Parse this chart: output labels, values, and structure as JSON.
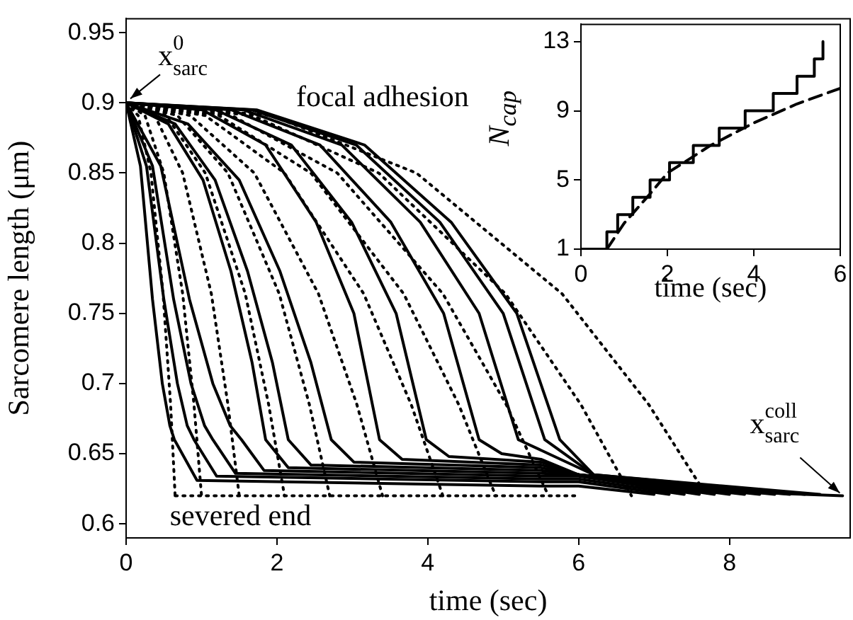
{
  "chart_data": [
    {
      "type": "line",
      "xlabel": "time (sec)",
      "ylabel": "Sarcomere length (μm)",
      "xlim": [
        0,
        9.6
      ],
      "ylim": [
        0.59,
        0.96
      ],
      "xticks": [
        0,
        2,
        4,
        6,
        8
      ],
      "yticks": [
        0.6,
        0.65,
        0.7,
        0.75,
        0.8,
        0.85,
        0.9,
        0.95
      ],
      "marker": "none",
      "annotations": [
        {
          "text": "x$^{0}$$_{sarc}$",
          "x": 0,
          "y": 0.9
        },
        "focal adhesion",
        "severed end",
        {
          "text": "x$^{coll}$$_{sarc}$",
          "x": 9.5,
          "y": 0.62
        }
      ],
      "series": [
        {
          "color": "#000000",
          "line_style": "solid",
          "x": [
            0,
            0.19,
            0.35,
            0.48,
            0.58,
            0.64,
            0.94,
            5.5,
            6,
            7
          ],
          "values": [
            0.9,
            0.855,
            0.76,
            0.7,
            0.67,
            0.66,
            0.631,
            0.627,
            0.627,
            0.621
          ]
        },
        {
          "color": "#000000",
          "line_style": "solid",
          "x": [
            0,
            0.27,
            0.5,
            0.68,
            0.81,
            0.9,
            1.2,
            5.5,
            6,
            7.2
          ],
          "values": [
            0.9,
            0.855,
            0.76,
            0.7,
            0.67,
            0.66,
            0.634,
            0.63,
            0.63,
            0.621
          ]
        },
        {
          "color": "#000000",
          "line_style": "solid",
          "x": [
            0,
            0.35,
            0.63,
            0.86,
            1.04,
            1.15,
            1.45,
            5.5,
            6,
            7.4
          ],
          "values": [
            0.9,
            0.855,
            0.76,
            0.7,
            0.67,
            0.66,
            0.636,
            0.632,
            0.632,
            0.621
          ]
        },
        {
          "color": "#000000",
          "line_style": "solid",
          "x": [
            0,
            0.46,
            0.84,
            1.15,
            1.38,
            1.53,
            1.83,
            5.5,
            6,
            7.6
          ],
          "values": [
            0.9,
            0.855,
            0.76,
            0.7,
            0.67,
            0.66,
            0.638,
            0.634,
            0.634,
            0.621
          ]
        },
        {
          "color": "#000000",
          "line_style": "solid",
          "x": [
            0,
            0.56,
            1.02,
            1.39,
            1.67,
            1.85,
            2.15,
            5.5,
            6,
            7.8
          ],
          "values": [
            0.9,
            0.885,
            0.845,
            0.78,
            0.715,
            0.66,
            0.64,
            0.636,
            0.635,
            0.621
          ]
        },
        {
          "color": "#000000",
          "line_style": "solid",
          "x": [
            0,
            0.65,
            1.18,
            1.61,
            1.94,
            2.15,
            2.45,
            5.5,
            6,
            8
          ],
          "values": [
            0.9,
            0.885,
            0.845,
            0.78,
            0.715,
            0.66,
            0.642,
            0.638,
            0.635,
            0.621
          ]
        },
        {
          "color": "#000000",
          "line_style": "solid",
          "x": [
            0,
            0.82,
            1.5,
            2.04,
            2.45,
            2.72,
            3.02,
            5.5,
            6,
            8.2
          ],
          "values": [
            0.9,
            0.885,
            0.845,
            0.78,
            0.715,
            0.66,
            0.644,
            0.64,
            0.635,
            0.621
          ]
        },
        {
          "color": "#000000",
          "line_style": "solid",
          "x": [
            0,
            1.01,
            1.85,
            2.52,
            3.02,
            3.36,
            3.66,
            5.5,
            6,
            8.4
          ],
          "values": [
            0.9,
            0.895,
            0.87,
            0.815,
            0.75,
            0.66,
            0.646,
            0.642,
            0.635,
            0.621
          ]
        },
        {
          "color": "#000000",
          "line_style": "solid",
          "x": [
            0,
            1.19,
            2.19,
            2.99,
            3.58,
            3.98,
            4.28,
            5.5,
            6,
            8.6
          ],
          "values": [
            0.9,
            0.895,
            0.87,
            0.815,
            0.75,
            0.66,
            0.648,
            0.644,
            0.635,
            0.621
          ]
        },
        {
          "color": "#000000",
          "line_style": "solid",
          "x": [
            0,
            1.4,
            2.57,
            3.51,
            4.21,
            4.68,
            4.98,
            5.5,
            6,
            8.8
          ],
          "values": [
            0.9,
            0.895,
            0.87,
            0.815,
            0.75,
            0.66,
            0.65,
            0.646,
            0.635,
            0.621
          ]
        },
        {
          "color": "#000000",
          "line_style": "solid",
          "x": [
            0,
            1.56,
            2.86,
            3.9,
            4.68,
            5.2,
            6.2,
            9
          ],
          "values": [
            0.9,
            0.895,
            0.87,
            0.815,
            0.75,
            0.66,
            0.635,
            0.621
          ]
        },
        {
          "color": "#000000",
          "line_style": "solid",
          "x": [
            0,
            1.67,
            3.05,
            4.16,
            5,
            5.55,
            6.2,
            9.2
          ],
          "values": [
            0.9,
            0.895,
            0.87,
            0.815,
            0.75,
            0.66,
            0.635,
            0.621
          ]
        },
        {
          "color": "#000000",
          "line_style": "solid",
          "x": [
            0,
            1.73,
            3.16,
            4.31,
            5.18,
            5.75,
            6.2,
            7,
            9.5
          ],
          "values": [
            0.9,
            0.895,
            0.87,
            0.815,
            0.75,
            0.66,
            0.635,
            0.625,
            0.62
          ]
        },
        {
          "color": "#000000",
          "line_style": "dotted",
          "x": [
            0,
            0.16,
            0.33,
            0.49,
            0.59,
            0.65
          ],
          "values": [
            0.9,
            0.891,
            0.85,
            0.764,
            0.685,
            0.62
          ]
        },
        {
          "color": "#000000",
          "line_style": "dotted",
          "x": [
            0,
            0.25,
            0.5,
            0.75,
            0.9,
            1
          ],
          "values": [
            0.9,
            0.891,
            0.85,
            0.764,
            0.685,
            0.62
          ]
        },
        {
          "color": "#000000",
          "line_style": "dotted",
          "x": [
            0,
            0.38,
            0.75,
            1.13,
            1.35,
            1.5
          ],
          "values": [
            0.9,
            0.891,
            0.85,
            0.764,
            0.685,
            0.62
          ]
        },
        {
          "color": "#000000",
          "line_style": "dotted",
          "x": [
            0,
            0.53,
            1.05,
            1.58,
            1.89,
            2.1
          ],
          "values": [
            0.9,
            0.891,
            0.85,
            0.764,
            0.685,
            0.62
          ]
        },
        {
          "color": "#000000",
          "line_style": "dotted",
          "x": [
            0,
            0.68,
            1.35,
            2.03,
            2.43,
            2.7
          ],
          "values": [
            0.9,
            0.891,
            0.85,
            0.764,
            0.685,
            0.62
          ]
        },
        {
          "color": "#000000",
          "line_style": "dotted",
          "x": [
            0,
            0.85,
            1.7,
            2.55,
            3.06,
            3.4
          ],
          "values": [
            0.9,
            0.891,
            0.85,
            0.764,
            0.685,
            0.62
          ]
        },
        {
          "color": "#000000",
          "line_style": "dotted",
          "x": [
            0,
            1.05,
            2.1,
            3.15,
            3.78,
            4.2
          ],
          "values": [
            0.9,
            0.891,
            0.85,
            0.764,
            0.685,
            0.62
          ]
        },
        {
          "color": "#000000",
          "line_style": "dotted",
          "x": [
            0,
            1.23,
            2.45,
            3.68,
            4.41,
            4.9
          ],
          "values": [
            0.9,
            0.891,
            0.85,
            0.764,
            0.685,
            0.62
          ]
        },
        {
          "color": "#000000",
          "line_style": "dotted",
          "x": [
            0,
            1.4,
            2.8,
            4.2,
            5.04,
            5.6
          ],
          "values": [
            0.9,
            0.891,
            0.85,
            0.764,
            0.685,
            0.62
          ]
        },
        {
          "color": "#000000",
          "line_style": "dotted",
          "x": [
            0,
            1.68,
            3.35,
            5.03,
            6.03,
            6.7
          ],
          "values": [
            0.9,
            0.891,
            0.85,
            0.764,
            0.685,
            0.62
          ]
        },
        {
          "color": "#000000",
          "line_style": "dotted",
          "x": [
            0,
            1.93,
            3.85,
            5.78,
            6.93,
            7.7
          ],
          "values": [
            0.9,
            0.891,
            0.85,
            0.764,
            0.685,
            0.62
          ]
        },
        {
          "color": "#000000",
          "line_style": "dotted",
          "x": [
            0.65,
            6
          ],
          "values": [
            0.62,
            0.62
          ]
        }
      ]
    },
    {
      "type": "line",
      "xlabel": "time (sec)",
      "ylabel": "N$_{cap}$",
      "xlim": [
        0,
        6
      ],
      "ylim": [
        1,
        14
      ],
      "xticks": [
        0,
        2,
        4,
        6
      ],
      "yticks": [
        1,
        5,
        9,
        13
      ],
      "marker": "none",
      "series": [
        {
          "type": "step",
          "color": "#000000",
          "line_style": "solid",
          "x": [
            0,
            0.6,
            0.85,
            1.2,
            1.6,
            2.05,
            2.6,
            3.2,
            3.8,
            4.45,
            5,
            5.4,
            5.6
          ],
          "values": [
            1,
            2,
            3,
            4,
            5,
            6,
            7,
            8,
            9,
            10,
            11,
            12,
            13
          ]
        },
        {
          "type": "line",
          "color": "#000000",
          "line_style": "dashed",
          "x": [
            0.6,
            1,
            1.6,
            2,
            3,
            4,
            5,
            6
          ],
          "values": [
            1,
            2.5,
            4.2,
            5.4,
            7,
            8.3,
            9.4,
            10.3
          ]
        }
      ]
    }
  ]
}
